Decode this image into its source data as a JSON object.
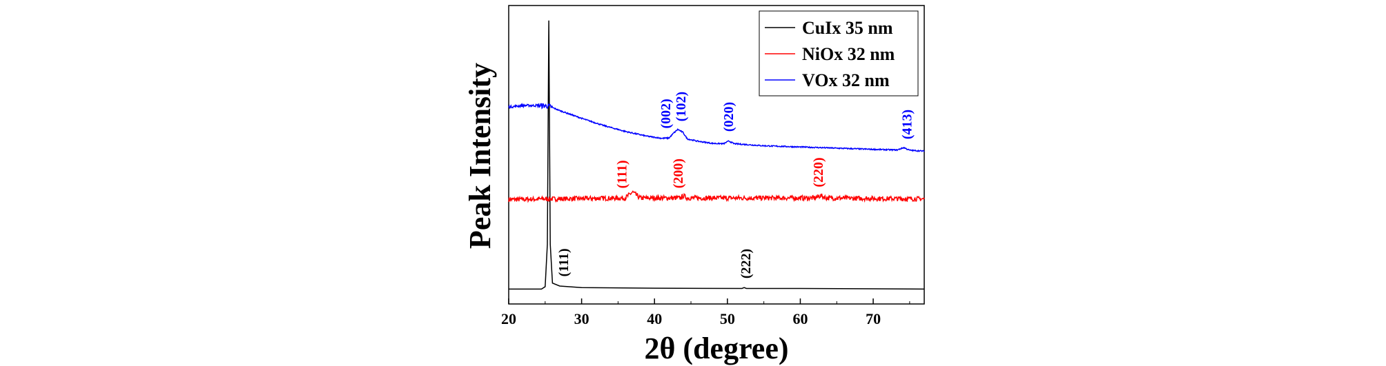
{
  "chart_data": {
    "type": "line",
    "title": "",
    "xlabel": "2θ (degree)",
    "ylabel": "Peak Intensity",
    "xlim": [
      20,
      77
    ],
    "ylim": [
      0,
      1
    ],
    "x_ticks": [
      20,
      30,
      40,
      50,
      60,
      70
    ],
    "x_tick_labels": [
      "20",
      "30",
      "40",
      "50",
      "60",
      "70"
    ],
    "grid": false,
    "legend_position": "top-right",
    "series": [
      {
        "name": "CuIx 35 nm",
        "color": "#000000",
        "baseline": 0.05,
        "points": [
          [
            20,
            0.05
          ],
          [
            24.5,
            0.05
          ],
          [
            25.0,
            0.058
          ],
          [
            25.3,
            0.2
          ],
          [
            25.5,
            0.95
          ],
          [
            25.7,
            0.2
          ],
          [
            26.0,
            0.07
          ],
          [
            27,
            0.06
          ],
          [
            30,
            0.055
          ],
          [
            40,
            0.053
          ],
          [
            52,
            0.052
          ],
          [
            52.3,
            0.055
          ],
          [
            52.6,
            0.052
          ],
          [
            60,
            0.052
          ],
          [
            77,
            0.05
          ]
        ],
        "annotations": [
          {
            "label": "(111)",
            "x": 27.5
          },
          {
            "label": "(222)",
            "x": 52.5
          }
        ]
      },
      {
        "name": "NiOx 32 nm",
        "color": "#ff0000",
        "baseline": 0.35,
        "points": [
          [
            20,
            0.35
          ],
          [
            36,
            0.355
          ],
          [
            37,
            0.375
          ],
          [
            38,
            0.355
          ],
          [
            43.5,
            0.355
          ],
          [
            44,
            0.362
          ],
          [
            44.5,
            0.355
          ],
          [
            62,
            0.355
          ],
          [
            62.8,
            0.363
          ],
          [
            63.6,
            0.355
          ],
          [
            77,
            0.352
          ]
        ],
        "noise": 0.008,
        "annotations": [
          {
            "label": "(111)",
            "x": 35.5
          },
          {
            "label": "(200)",
            "x": 43.2
          },
          {
            "label": "(220)",
            "x": 62.4
          }
        ]
      },
      {
        "name": "VOx 32 nm",
        "color": "#0000ff",
        "baseline": 0.6,
        "points": [
          [
            20,
            0.66
          ],
          [
            22,
            0.665
          ],
          [
            24,
            0.665
          ],
          [
            25.5,
            0.663
          ],
          [
            27,
            0.648
          ],
          [
            30,
            0.622
          ],
          [
            33,
            0.598
          ],
          [
            36,
            0.578
          ],
          [
            39,
            0.562
          ],
          [
            41,
            0.555
          ],
          [
            42,
            0.556
          ],
          [
            42.6,
            0.572
          ],
          [
            43.2,
            0.585
          ],
          [
            43.9,
            0.575
          ],
          [
            44.5,
            0.553
          ],
          [
            46,
            0.545
          ],
          [
            48,
            0.538
          ],
          [
            49.5,
            0.537
          ],
          [
            50.2,
            0.546
          ],
          [
            50.9,
            0.537
          ],
          [
            55,
            0.53
          ],
          [
            60,
            0.526
          ],
          [
            65,
            0.522
          ],
          [
            70,
            0.518
          ],
          [
            73.3,
            0.516
          ],
          [
            74.2,
            0.524
          ],
          [
            75.0,
            0.515
          ],
          [
            77,
            0.512
          ]
        ],
        "noise": 0.004,
        "annotations": [
          {
            "label": "(002)",
            "x": 41.5
          },
          {
            "label": "(102)",
            "x": 43.6
          },
          {
            "label": "(020)",
            "x": 50.1
          },
          {
            "label": "(413)",
            "x": 74.6
          }
        ]
      }
    ]
  }
}
